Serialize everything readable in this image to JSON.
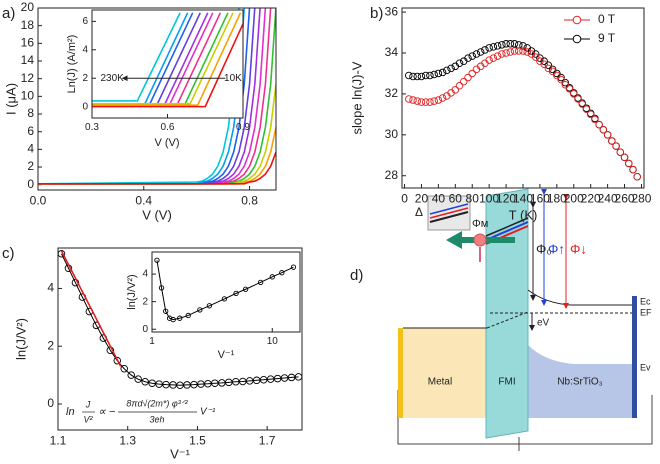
{
  "chart_data": [
    {
      "label": "a)",
      "type": "line",
      "x": [
        0,
        0.6,
        0.62,
        0.64,
        0.66,
        0.68,
        0.7,
        0.72,
        0.74,
        0.76,
        0.78,
        0.8,
        0.82,
        0.84,
        0.86,
        0.88,
        0.9
      ],
      "series": [
        {
          "color": "#00c8d8",
          "values": [
            0.1,
            0.3,
            0.4,
            0.7,
            1.2,
            2.1,
            3.7,
            6.5,
            11.4,
            20.1,
            35,
            null,
            null,
            null,
            null,
            null,
            null
          ]
        },
        {
          "color": "#00a0f0",
          "values": [
            0.1,
            0.1,
            0.3,
            0.4,
            0.7,
            1.2,
            2.1,
            3.7,
            6.5,
            11.4,
            20.1,
            35,
            null,
            null,
            null,
            null,
            null
          ]
        },
        {
          "color": "#2060f0",
          "values": [
            0.1,
            0.1,
            0.1,
            0.3,
            0.4,
            0.7,
            1.2,
            2.1,
            3.7,
            6.5,
            11.4,
            20.1,
            35,
            null,
            null,
            null,
            null
          ]
        },
        {
          "color": "#6040e0",
          "values": [
            0.1,
            0.1,
            0.1,
            0.1,
            0.3,
            0.4,
            0.7,
            1.2,
            2.1,
            3.7,
            6.5,
            11.4,
            20.1,
            35,
            null,
            null,
            null
          ]
        },
        {
          "color": "#a030e0",
          "values": [
            0.1,
            0.1,
            0.1,
            0.1,
            0.1,
            0.3,
            0.4,
            0.7,
            1.2,
            2.1,
            3.7,
            6.5,
            11.4,
            20.1,
            35,
            null,
            null
          ]
        },
        {
          "color": "#e030d0",
          "values": [
            0.1,
            0.1,
            0.1,
            0.1,
            0.1,
            0.1,
            0.3,
            0.4,
            0.7,
            1.2,
            2.1,
            3.7,
            6.5,
            11.4,
            20.1,
            35,
            null
          ]
        },
        {
          "color": "#f03090",
          "values": [
            0.1,
            0.1,
            0.1,
            0.1,
            0.1,
            0.1,
            0.1,
            0.3,
            0.4,
            0.7,
            1.2,
            2.1,
            3.7,
            6.5,
            11.4,
            20.1,
            35
          ]
        },
        {
          "color": "#30c030",
          "values": [
            0.1,
            0.1,
            0.1,
            0.1,
            0.1,
            0.1,
            0.1,
            0.1,
            0.3,
            0.4,
            0.7,
            1.2,
            2.1,
            3.7,
            6.5,
            11.4,
            20.1
          ]
        },
        {
          "color": "#c8d000",
          "values": [
            0.1,
            0.1,
            0.1,
            0.1,
            0.1,
            0.1,
            0.1,
            0.1,
            0.1,
            0.3,
            0.4,
            0.7,
            1.2,
            2.1,
            3.7,
            6.5,
            11.4
          ]
        },
        {
          "color": "#f8a000",
          "values": [
            0.1,
            0.1,
            0.1,
            0.1,
            0.1,
            0.1,
            0.1,
            0.1,
            0.1,
            0.1,
            0.3,
            0.4,
            0.7,
            1.2,
            2.1,
            3.7,
            6.5
          ]
        },
        {
          "color": "#f01010",
          "values": [
            0.1,
            0.1,
            0.1,
            0.1,
            0.1,
            0.1,
            0.1,
            0.1,
            0.1,
            0.1,
            0.1,
            0.3,
            0.4,
            0.7,
            1.2,
            2.1,
            3.7
          ]
        }
      ],
      "xlim": [
        0,
        0.9
      ],
      "ylim": [
        -0.6,
        20
      ],
      "xticks": [
        {
          "value": 0,
          "label": "0.0"
        },
        0.4,
        0.8
      ],
      "yticks": [
        0,
        2,
        4,
        6,
        8,
        10,
        12,
        14,
        16,
        18,
        20
      ],
      "x_label": "V (V)",
      "y_label": "I (μA)"
    },
    {
      "type": "line",
      "series": [
        {
          "color": "#00c8d8",
          "x": [
            0.3,
            0.48,
            0.65
          ],
          "values": [
            0.4,
            0.4,
            6.6
          ]
        },
        {
          "color": "#00a0f0",
          "x": [
            0.3,
            0.51,
            0.68
          ],
          "values": [
            0.2,
            0.2,
            6.6
          ]
        },
        {
          "color": "#2060f0",
          "x": [
            0.3,
            0.53,
            0.7
          ],
          "values": [
            0.2,
            0.2,
            6.6
          ]
        },
        {
          "color": "#6040e0",
          "x": [
            0.3,
            0.56,
            0.73
          ],
          "values": [
            0.2,
            0.2,
            6.6
          ]
        },
        {
          "color": "#a030e0",
          "x": [
            0.3,
            0.59,
            0.76
          ],
          "values": [
            0.2,
            0.2,
            6.6
          ]
        },
        {
          "color": "#e030d0",
          "x": [
            0.3,
            0.61,
            0.78
          ],
          "values": [
            0.2,
            0.2,
            6.6
          ]
        },
        {
          "color": "#f03090",
          "x": [
            0.3,
            0.64,
            0.81
          ],
          "values": [
            0.2,
            0.2,
            6.6
          ]
        },
        {
          "color": "#30c030",
          "x": [
            0.3,
            0.67,
            0.84
          ],
          "values": [
            0.2,
            0.2,
            6.6
          ]
        },
        {
          "color": "#c8d000",
          "x": [
            0.3,
            0.69,
            0.86
          ],
          "values": [
            0.2,
            0.2,
            6.6
          ]
        },
        {
          "color": "#f8a000",
          "x": [
            0.3,
            0.72,
            0.89
          ],
          "values": [
            0.1,
            0.1,
            6.6
          ]
        },
        {
          "color": "#f01010",
          "x": [
            0.3,
            0.75,
            0.92
          ],
          "values": [
            0,
            0,
            6.6
          ]
        }
      ],
      "xlim": [
        0.3,
        0.9
      ],
      "ylim": [
        -0.8,
        6.8
      ],
      "xticks": [
        0.3,
        0.6,
        0.9
      ],
      "yticks": [
        0,
        2,
        4,
        6
      ],
      "x_label": "V (V)",
      "y_label": "Ln(J) (A/m²)",
      "annotations": [
        "230K",
        "10K"
      ]
    },
    {
      "label": "b)",
      "type": "scatter",
      "x": [
        5,
        10,
        15,
        20,
        25,
        30,
        35,
        40,
        45,
        50,
        55,
        60,
        65,
        70,
        75,
        80,
        85,
        90,
        95,
        100,
        105,
        110,
        115,
        120,
        125,
        130,
        135,
        140,
        145,
        150,
        155,
        160,
        165,
        170,
        175,
        180,
        185,
        190,
        195,
        200,
        205,
        210,
        215,
        220,
        225,
        230,
        235,
        240,
        245,
        250,
        255,
        260,
        265,
        270,
        275
      ],
      "series": [
        {
          "name": "0 T",
          "color": "#e02020",
          "marker": "circle",
          "values": [
            31.75,
            31.7,
            31.65,
            31.6,
            31.6,
            31.6,
            31.65,
            31.7,
            31.8,
            31.9,
            32.05,
            32.2,
            32.4,
            32.6,
            32.8,
            33.0,
            33.2,
            33.35,
            33.5,
            33.65,
            33.75,
            33.85,
            33.95,
            34.0,
            34.05,
            34.1,
            34.1,
            34.1,
            34.05,
            33.95,
            33.8,
            33.6,
            33.45,
            33.25,
            33.1,
            32.9,
            32.7,
            32.45,
            32.25,
            32.0,
            31.75,
            31.5,
            31.25,
            31.0,
            30.75,
            30.5,
            30.25,
            30.0,
            29.7,
            29.45,
            29.15,
            28.9,
            28.6,
            28.3,
            27.95
          ]
        },
        {
          "name": "9 T",
          "color": "#000000",
          "marker": "circle",
          "values": [
            32.9,
            32.85,
            32.85,
            32.85,
            32.9,
            32.9,
            32.95,
            33.0,
            33.05,
            33.15,
            33.25,
            33.35,
            33.5,
            33.6,
            33.75,
            33.85,
            33.95,
            34.05,
            34.15,
            34.25,
            34.3,
            34.35,
            34.4,
            34.45,
            34.45,
            34.45,
            34.4,
            34.35,
            34.25,
            34.1,
            33.95,
            33.75,
            33.6,
            33.4,
            33.2,
            33.0,
            32.8,
            32.55,
            32.3,
            32.05,
            31.8,
            31.55,
            31.3,
            31.05,
            30.8,
            30.5,
            30.25,
            30.0,
            29.7,
            29.45,
            29.15,
            28.9,
            28.6,
            28.3,
            27.95
          ]
        }
      ],
      "xlim": [
        -3,
        283
      ],
      "ylim": [
        27.4,
        36.2
      ],
      "xticks": [
        0,
        20,
        40,
        60,
        80,
        100,
        120,
        140,
        160,
        180,
        200,
        220,
        240,
        260,
        280
      ],
      "yticks": [
        28,
        30,
        32,
        34,
        36
      ],
      "x_label": "T (K)",
      "y_label": "slope ln(J)-V",
      "legend": "upper right"
    },
    {
      "label": "c)",
      "type": "line",
      "x": [
        1.11,
        1.13,
        1.15,
        1.17,
        1.19,
        1.21,
        1.23,
        1.25,
        1.27,
        1.29,
        1.31,
        1.33,
        1.35,
        1.37,
        1.39,
        1.41,
        1.43,
        1.45,
        1.47,
        1.49,
        1.51,
        1.53,
        1.55,
        1.57,
        1.59,
        1.61,
        1.63,
        1.65,
        1.67,
        1.69,
        1.71,
        1.73,
        1.75,
        1.77,
        1.79
      ],
      "series": [
        {
          "color": "#000000",
          "marker": "circle",
          "values": [
            5.2,
            4.7,
            4.2,
            3.7,
            3.2,
            2.72,
            2.28,
            1.86,
            1.5,
            1.22,
            1.0,
            0.86,
            0.77,
            0.72,
            0.69,
            0.67,
            0.66,
            0.65,
            0.66,
            0.67,
            0.69,
            0.7,
            0.72,
            0.73,
            0.75,
            0.77,
            0.78,
            0.8,
            0.82,
            0.84,
            0.86,
            0.88,
            0.9,
            0.92,
            0.94
          ]
        },
        {
          "color": "#e02020",
          "x": [
            1.11,
            1.28
          ],
          "values": [
            5.3,
            1.3
          ]
        }
      ],
      "xlim": [
        1.1,
        1.8
      ],
      "ylim": [
        -0.9,
        5.4
      ],
      "xticks": [
        1.1,
        1.3,
        1.5,
        1.7
      ],
      "yticks": [
        0,
        2,
        4
      ],
      "x_label": "V⁻¹",
      "y_label": "ln(J/V²)",
      "formula": {
        "prefix": "ln",
        "lhs_num": "J",
        "lhs_den": "V²",
        "relation": "∝ −",
        "num": "8πd√(2m*) φ³ᐟ²",
        "den": "3eh",
        "suffix": "V⁻¹"
      }
    },
    {
      "type": "line",
      "xlog": true,
      "x": [
        1.1,
        1.2,
        1.3,
        1.4,
        1.5,
        1.7,
        2,
        2.5,
        3,
        4,
        5,
        6,
        8,
        10,
        12,
        15
      ],
      "series": [
        {
          "color": "#000000",
          "marker": "circle",
          "values": [
            5.0,
            3.0,
            1.3,
            0.8,
            0.7,
            0.8,
            1.0,
            1.4,
            1.7,
            2.2,
            2.6,
            2.9,
            3.4,
            3.8,
            4.1,
            4.5
          ]
        }
      ],
      "xlim": [
        1,
        17
      ],
      "ylim": [
        -0.2,
        5.6
      ],
      "xticks": [
        1,
        10
      ],
      "yticks": [
        0,
        2,
        4
      ],
      "x_label": "V⁻¹",
      "y_label": "ln(J/V²)"
    }
  ],
  "diagram": {
    "label": "d)",
    "regions": [
      "Metal",
      "FMI",
      "Nb:SrTiO₃"
    ],
    "phi0": "Φ₀",
    "phi_up": "Φ↑",
    "phi_down": "Φ↓",
    "phi_m": "Φᴍ",
    "delta": "Δ",
    "ev": "eV",
    "ec": "Ec",
    "ef": "EF",
    "ev_band": "Ev"
  }
}
